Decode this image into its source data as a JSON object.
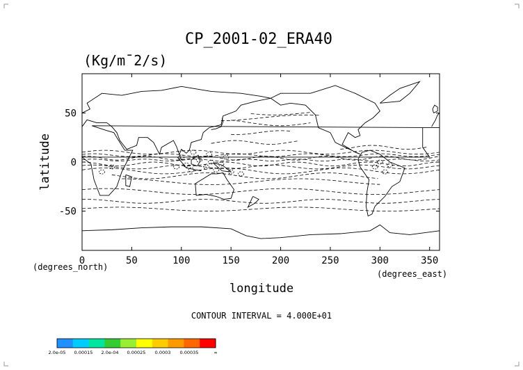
{
  "chart_data": {
    "type": "contour",
    "title": "CP_2001-02_ERA40",
    "units": "(Kg/m¯2/s)",
    "xlabel": "longitude",
    "ylabel": "latitude",
    "x_unit_label": "(degrees_east)",
    "y_unit_label": "(degrees_north)",
    "xlim": [
      0,
      360
    ],
    "ylim": [
      -90,
      90
    ],
    "x_ticks": [
      0,
      50,
      100,
      150,
      200,
      250,
      300,
      350
    ],
    "y_ticks": [
      50,
      0,
      -50
    ],
    "contour_interval_text": "CONTOUR INTERVAL = 4.000E+01",
    "colorbar": {
      "colors": [
        "#1e90ff",
        "#00ccff",
        "#00e6a0",
        "#33cc33",
        "#99ee33",
        "#ffff00",
        "#ffcc00",
        "#ff9900",
        "#ff6600",
        "#ff0000"
      ],
      "labels": [
        "2.0e-05",
        "0.00015",
        "2.0e-04",
        "0.00025",
        "0.0003",
        "0.00035",
        "∞"
      ]
    }
  }
}
